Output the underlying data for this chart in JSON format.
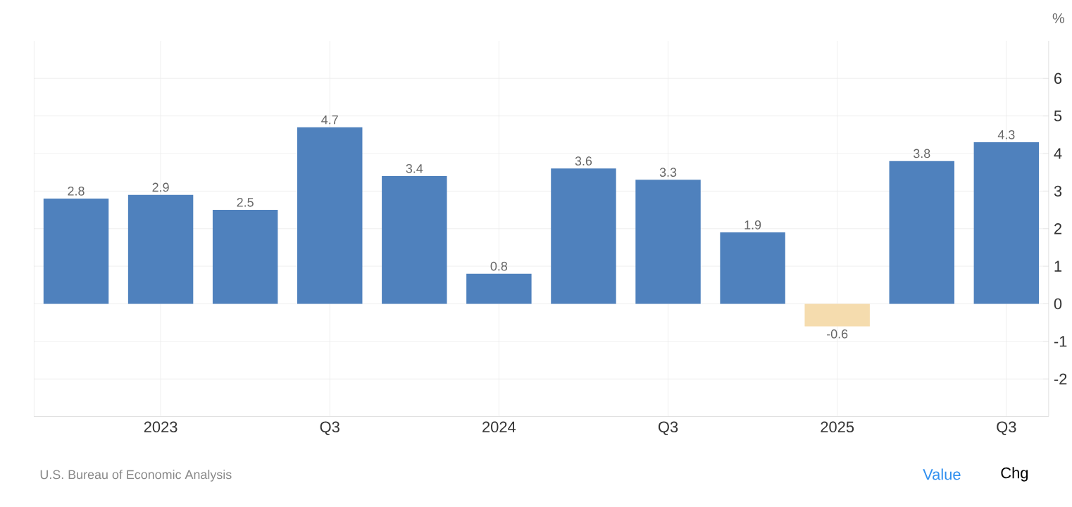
{
  "chart_data": {
    "type": "bar",
    "categories": [
      null,
      "2023",
      null,
      "Q3",
      null,
      "2024",
      null,
      "Q3",
      null,
      "2025",
      null,
      "Q3"
    ],
    "values": [
      2.8,
      2.9,
      2.5,
      4.7,
      3.4,
      0.8,
      3.6,
      3.3,
      1.9,
      -0.6,
      3.8,
      4.3
    ],
    "colors": [
      "#4f81bd",
      "#4f81bd",
      "#4f81bd",
      "#4f81bd",
      "#4f81bd",
      "#4f81bd",
      "#4f81bd",
      "#4f81bd",
      "#4f81bd",
      "#f5dcae",
      "#4f81bd",
      "#4f81bd"
    ],
    "ylim": [
      -3,
      7
    ],
    "yticks": [
      -2,
      -1,
      0,
      1,
      2,
      3,
      4,
      5,
      6
    ],
    "ylabel": "%",
    "grid": true,
    "data_labels": true,
    "annotations": [
      "U.S. Bureau of Economic Analysis",
      "Value",
      "Chg"
    ]
  }
}
